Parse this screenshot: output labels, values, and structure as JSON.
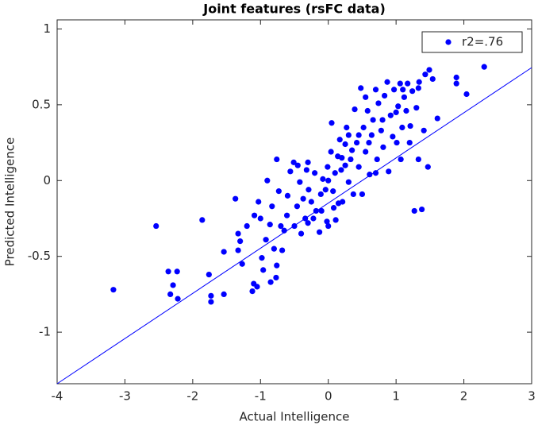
{
  "chart_data": {
    "type": "scatter",
    "title": "Joint features (rsFC data)",
    "xlabel": "Actual Intelligence",
    "ylabel": "Predicted Intelligence",
    "xlim": [
      -4,
      3
    ],
    "ylim": [
      -1.34,
      1.06
    ],
    "xticks": [
      -4,
      -3,
      -2,
      -1,
      0,
      1,
      2,
      3
    ],
    "yticks": [
      -1,
      -0.5,
      0,
      0.5,
      1
    ],
    "legend": "northeast",
    "x": [
      -3.17,
      -2.54,
      -2.36,
      -2.29,
      -2.33,
      -2.23,
      -2.22,
      -1.86,
      -1.76,
      -1.73,
      -1.73,
      -1.54,
      -1.54,
      -1.37,
      -1.33,
      -1.3,
      -1.33,
      -1.27,
      -1.12,
      -1.1,
      -1.05,
      -1.09,
      -1.03,
      -0.98,
      -0.96,
      -0.92,
      -0.86,
      -0.83,
      -0.76,
      -0.73,
      -0.77,
      -0.85,
      -0.76,
      -0.68,
      -0.65,
      -0.61,
      -0.56,
      -0.51,
      -0.46,
      -0.42,
      -0.37,
      -0.34,
      -0.32,
      -0.29,
      -0.25,
      -0.22,
      -0.18,
      -0.13,
      -0.11,
      -0.08,
      -0.04,
      -0.02,
      -0.01,
      0.04,
      0.07,
      0.08,
      0.11,
      0.14,
      0.17,
      0.19,
      0.21,
      0.25,
      0.27,
      0.3,
      0.33,
      0.37,
      0.39,
      0.42,
      0.45,
      0.48,
      0.5,
      0.52,
      0.55,
      0.58,
      0.61,
      0.64,
      0.66,
      0.7,
      0.72,
      0.74,
      0.78,
      0.81,
      0.83,
      0.87,
      0.89,
      0.92,
      0.95,
      0.97,
      1.01,
      1.03,
      1.06,
      1.09,
      1.12,
      1.15,
      1.17,
      1.21,
      1.24,
      1.27,
      1.3,
      1.33,
      1.34,
      1.38,
      1.41,
      1.43,
      1.47,
      1.49,
      1.54,
      1.61,
      1.89,
      1.89,
      2.04,
      2.3,
      1.33,
      1.07,
      -0.5,
      -0.4,
      -0.6,
      -0.2,
      0.0,
      0.1,
      0.2,
      0.3,
      0.45,
      0.6,
      -0.9,
      -1.0,
      -0.7,
      -0.3,
      0.0,
      0.15,
      0.35,
      0.8,
      1.0,
      1.1,
      -0.45,
      -0.3,
      0.05,
      0.55,
      0.25,
      -0.1,
      0.7,
      1.2,
      -0.8,
      -1.2
    ],
    "series": [
      {
        "name": "r2=.76",
        "color": "#0000ff",
        "values": [
          -0.72,
          -0.3,
          -0.6,
          -0.69,
          -0.75,
          -0.6,
          -0.78,
          -0.26,
          -0.62,
          -0.76,
          -0.8,
          -0.75,
          -0.47,
          -0.12,
          -0.35,
          -0.4,
          -0.46,
          -0.55,
          -0.73,
          -0.68,
          -0.7,
          -0.23,
          -0.14,
          -0.51,
          -0.59,
          -0.39,
          -0.29,
          -0.17,
          0.14,
          -0.07,
          -0.64,
          -0.67,
          -0.56,
          -0.46,
          -0.33,
          -0.23,
          0.06,
          0.12,
          -0.17,
          -0.01,
          -0.12,
          -0.25,
          0.07,
          -0.06,
          -0.14,
          -0.25,
          -0.2,
          -0.34,
          -0.09,
          0.01,
          -0.06,
          -0.27,
          0.09,
          0.19,
          -0.07,
          -0.18,
          -0.26,
          0.16,
          0.27,
          0.07,
          -0.14,
          0.24,
          0.35,
          -0.01,
          0.14,
          -0.09,
          0.47,
          0.25,
          0.09,
          0.61,
          -0.09,
          0.35,
          0.19,
          0.46,
          0.04,
          0.3,
          0.4,
          0.6,
          0.14,
          0.51,
          0.33,
          0.22,
          0.56,
          0.65,
          0.06,
          0.43,
          0.29,
          0.6,
          0.25,
          0.49,
          0.64,
          0.35,
          0.55,
          0.46,
          0.64,
          0.36,
          0.59,
          -0.2,
          0.48,
          0.61,
          0.65,
          -0.19,
          0.33,
          0.7,
          0.09,
          0.73,
          0.67,
          0.41,
          0.68,
          0.64,
          0.57,
          0.75,
          0.14,
          0.14,
          -0.3,
          -0.35,
          -0.1,
          0.05,
          0.0,
          0.05,
          0.15,
          0.3,
          0.3,
          0.25,
          0.0,
          -0.25,
          -0.3,
          -0.28,
          -0.3,
          -0.15,
          0.2,
          0.4,
          0.45,
          0.6,
          0.1,
          0.12,
          0.38,
          0.55,
          0.1,
          -0.2,
          0.05,
          0.25,
          -0.45,
          -0.3
        ]
      }
    ],
    "fit_line": {
      "color": "#0000ff",
      "x": [
        -4,
        3
      ],
      "y": [
        -1.34,
        0.745
      ]
    }
  }
}
